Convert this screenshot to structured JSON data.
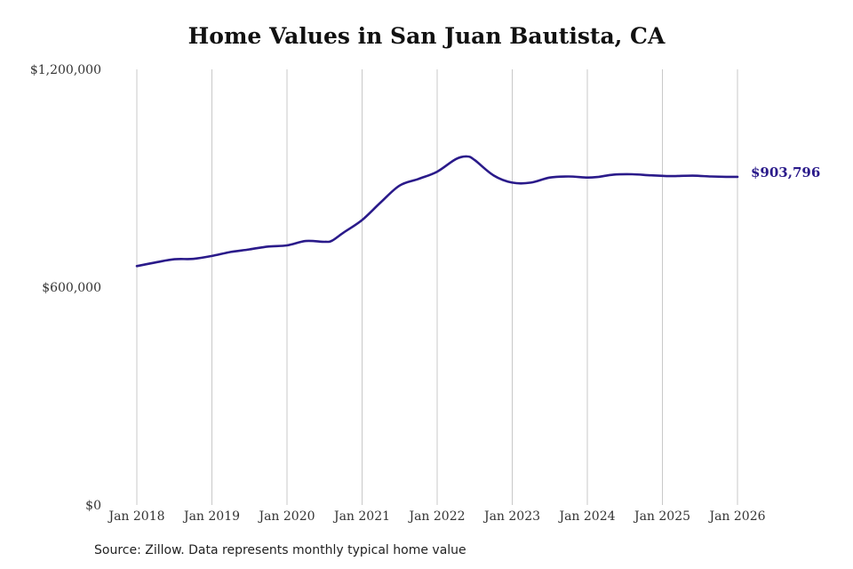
{
  "chart_data": {
    "type": "line",
    "title": "Home Values in San Juan Bautista, CA",
    "xlabel": "",
    "ylabel": "",
    "ylim": [
      0,
      1200000
    ],
    "yticks": [
      {
        "value": 0,
        "label": "$0"
      },
      {
        "value": 600000,
        "label": "$600,000"
      },
      {
        "value": 1200000,
        "label": "$1,200,000"
      }
    ],
    "xlim": [
      2018.0,
      2026.0
    ],
    "xticks": [
      {
        "value": 2018,
        "label": "Jan 2018"
      },
      {
        "value": 2019,
        "label": "Jan 2019"
      },
      {
        "value": 2020,
        "label": "Jan 2020"
      },
      {
        "value": 2021,
        "label": "Jan 2021"
      },
      {
        "value": 2022,
        "label": "Jan 2022"
      },
      {
        "value": 2023,
        "label": "Jan 2023"
      },
      {
        "value": 2024,
        "label": "Jan 2024"
      },
      {
        "value": 2025,
        "label": "Jan 2025"
      },
      {
        "value": 2026,
        "label": "Jan 2026"
      }
    ],
    "grid": "vertical",
    "line_color": "#2a1a8a",
    "series": [
      {
        "x": [
          2018.0,
          2018.25,
          2018.5,
          2018.75,
          2019.0,
          2019.25,
          2019.5,
          2019.75,
          2020.0,
          2020.25,
          2020.5,
          2020.6,
          2020.75,
          2021.0,
          2021.25,
          2021.5,
          2021.75,
          2022.0,
          2022.25,
          2022.4,
          2022.5,
          2022.75,
          2023.0,
          2023.25,
          2023.5,
          2023.75,
          2024.0,
          2024.15,
          2024.35,
          2024.6,
          2024.85,
          2025.1,
          2025.4,
          2025.65,
          2025.85,
          2026.0
        ],
        "y": [
          658000,
          668000,
          677000,
          678000,
          686000,
          697000,
          704000,
          712000,
          715000,
          727000,
          725000,
          728000,
          750000,
          785000,
          834000,
          880000,
          898000,
          918000,
          953000,
          960000,
          950000,
          908000,
          888000,
          888000,
          902000,
          905000,
          902000,
          904000,
          910000,
          911000,
          908000,
          906000,
          907000,
          905000,
          904000,
          903796
        ]
      }
    ],
    "end_label": "$903,796",
    "source": "Source: Zillow. Data represents monthly typical home value"
  }
}
